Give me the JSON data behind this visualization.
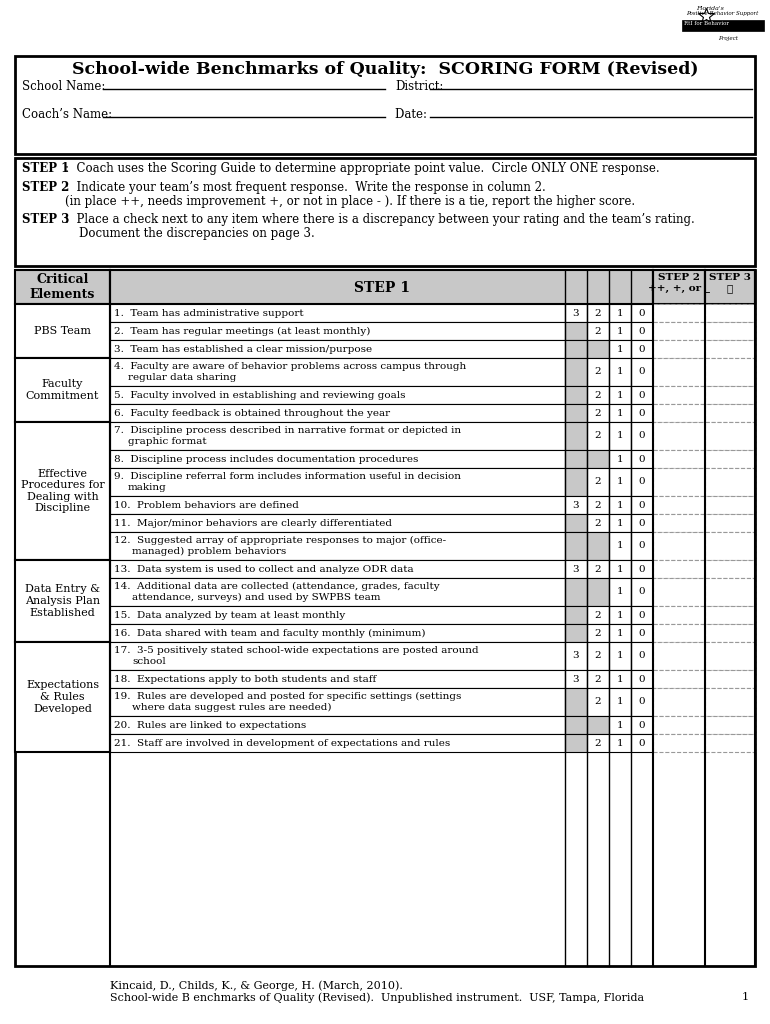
{
  "title": "School-wide Benchmarks of Quality:  SCORING FORM (Revised)",
  "bg_color": "#ffffff",
  "header_bg": "#c8c8c8",
  "cell_gray": "#c8c8c8",
  "border_color": "#000000",
  "categories": [
    {
      "name": "PBS Team",
      "items": [
        {
          "num": "1.",
          "text": "Team has administrative support",
          "scores": [
            3,
            2,
            1,
            0
          ]
        },
        {
          "num": "2.",
          "text": "Team has regular meetings (at least monthly)",
          "scores": [
            null,
            2,
            1,
            0
          ]
        },
        {
          "num": "3.",
          "text": "Team has established a clear mission/purpose",
          "scores": [
            null,
            null,
            1,
            0
          ]
        }
      ]
    },
    {
      "name": "Faculty\nCommitment",
      "items": [
        {
          "num": "4.",
          "text": "Faculty are aware of behavior problems across campus through\nregular data sharing",
          "scores": [
            null,
            2,
            1,
            0
          ]
        },
        {
          "num": "5.",
          "text": "Faculty involved in establishing and reviewing goals",
          "scores": [
            null,
            2,
            1,
            0
          ]
        },
        {
          "num": "6.",
          "text": "Faculty feedback is obtained throughout the year",
          "scores": [
            null,
            2,
            1,
            0
          ]
        }
      ]
    },
    {
      "name": "Effective\nProcedures for\nDealing with\nDiscipline",
      "items": [
        {
          "num": "7.",
          "text": "Discipline process described in narrative format or depicted in\ngraphic format",
          "scores": [
            null,
            2,
            1,
            0
          ]
        },
        {
          "num": "8.",
          "text": "Discipline process includes documentation procedures",
          "scores": [
            null,
            null,
            1,
            0
          ]
        },
        {
          "num": "9.",
          "text": "Discipline referral form includes information useful in decision\nmaking",
          "scores": [
            null,
            2,
            1,
            0
          ]
        },
        {
          "num": "10.",
          "text": "Problem behaviors are defined",
          "scores": [
            3,
            2,
            1,
            0
          ]
        },
        {
          "num": "11.",
          "text": "Major/minor behaviors are clearly differentiated",
          "scores": [
            null,
            2,
            1,
            0
          ]
        },
        {
          "num": "12.",
          "text": "Suggested array of appropriate responses to major (office-\nmanaged) problem behaviors",
          "scores": [
            null,
            null,
            1,
            0
          ]
        }
      ]
    },
    {
      "name": "Data Entry &\nAnalysis Plan\nEstablished",
      "items": [
        {
          "num": "13.",
          "text": "Data system is used to collect and analyze ODR data",
          "scores": [
            3,
            2,
            1,
            0
          ]
        },
        {
          "num": "14.",
          "text": "Additional data are collected (attendance, grades, faculty\nattendance, surveys) and used by SWPBS team",
          "scores": [
            null,
            null,
            1,
            0
          ]
        },
        {
          "num": "15.",
          "text": "Data analyzed by team at least monthly",
          "scores": [
            null,
            2,
            1,
            0
          ]
        },
        {
          "num": "16.",
          "text": "Data shared with team and faculty monthly (minimum)",
          "scores": [
            null,
            2,
            1,
            0
          ]
        }
      ]
    },
    {
      "name": "Expectations\n& Rules\nDeveloped",
      "items": [
        {
          "num": "17.",
          "text": "3-5 positively stated school-wide expectations are posted around\nschool",
          "scores": [
            3,
            2,
            1,
            0
          ]
        },
        {
          "num": "18.",
          "text": "Expectations apply to both students and staff",
          "scores": [
            3,
            2,
            1,
            0
          ]
        },
        {
          "num": "19.",
          "text": "Rules are developed and posted for specific settings (settings\nwhere data suggest rules are needed)",
          "scores": [
            null,
            2,
            1,
            0
          ]
        },
        {
          "num": "20.",
          "text": "Rules are linked to expectations",
          "scores": [
            null,
            null,
            1,
            0
          ]
        },
        {
          "num": "21.",
          "text": "Staff are involved in development of expectations and rules",
          "scores": [
            null,
            2,
            1,
            0
          ]
        }
      ]
    }
  ],
  "footer_line1": "Kincaid, D., Childs, K., & George, H. (March, 2010).",
  "footer_line2": "School-wide B enchmarks of Quality (Revised).  Unpublished instrument.  USF, Tampa, Florida",
  "page_num": "1"
}
